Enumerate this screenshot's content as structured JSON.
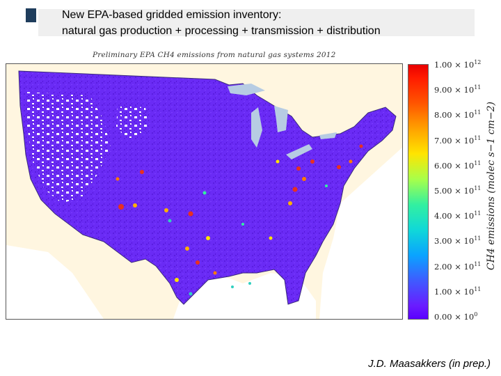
{
  "slide": {
    "title_line1": "New EPA-based gridded emission inventory:",
    "title_line2": "natural gas production + processing + transmission + distribution",
    "credit": "J.D. Maasakkers (in prep.)"
  },
  "figure": {
    "title": "Preliminary EPA CH4 emissions from natural gas systems 2012"
  },
  "colorbar": {
    "label": "CH4 emissions (molec s−1 cm−2)",
    "ticks": [
      {
        "mant": "1.00 × 10",
        "exp": "12"
      },
      {
        "mant": "9.00 × 10",
        "exp": "11"
      },
      {
        "mant": "8.00 × 10",
        "exp": "11"
      },
      {
        "mant": "7.00 × 10",
        "exp": "11"
      },
      {
        "mant": "6.00 × 10",
        "exp": "11"
      },
      {
        "mant": "5.00 × 10",
        "exp": "11"
      },
      {
        "mant": "4.00 × 10",
        "exp": "11"
      },
      {
        "mant": "3.00 × 10",
        "exp": "11"
      },
      {
        "mant": "2.00 × 10",
        "exp": "11"
      },
      {
        "mant": "1.00 × 10",
        "exp": "11"
      },
      {
        "mant": "0.00 × 10",
        "exp": "0"
      }
    ]
  },
  "colors": {
    "background_emission": "#6a2bf5",
    "hotspot": "#e83020",
    "land_none": "#ffffff",
    "neighbors": "#fff6e0",
    "water": "#b7cce3"
  }
}
